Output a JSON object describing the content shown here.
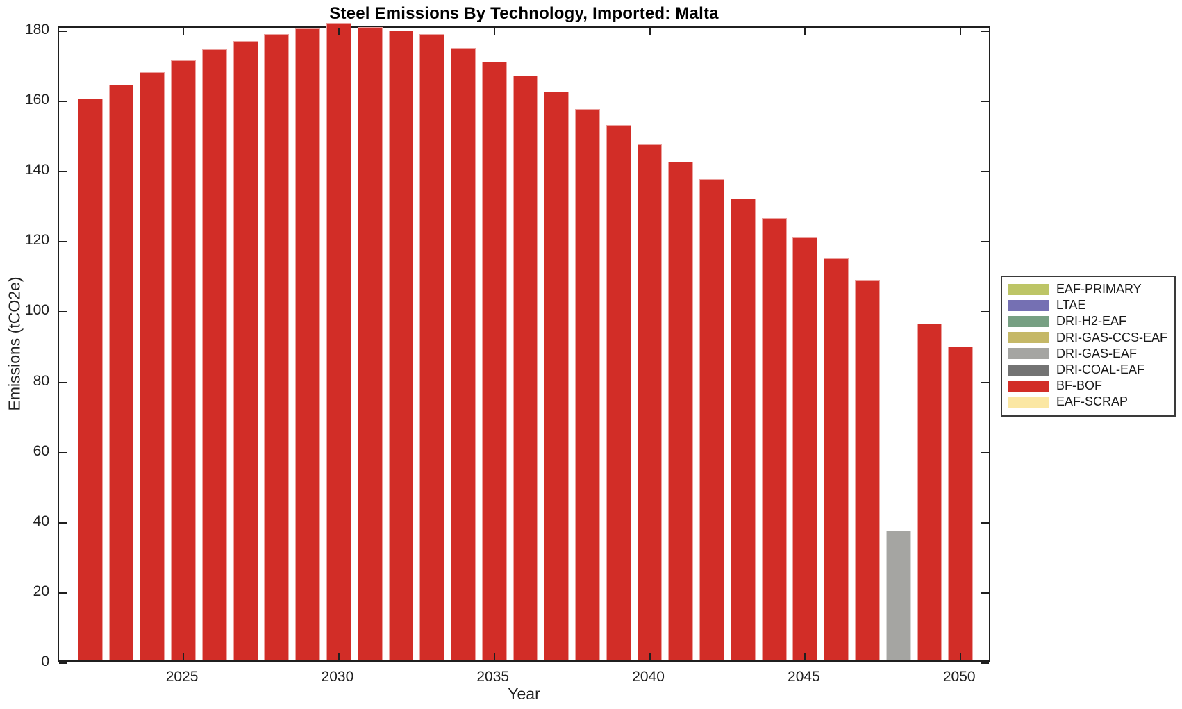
{
  "figure": {
    "title": "Steel Emissions By Technology, Imported: Malta",
    "xlabel": "Year",
    "ylabel": "Emissions (tCO2e)"
  },
  "chart_data": {
    "type": "bar",
    "title": "Steel Emissions By Technology, Imported: Malta",
    "xlabel": "Year",
    "ylabel": "Emissions (tCO2e)",
    "xlim": [
      2021,
      2051
    ],
    "ylim": [
      0,
      181
    ],
    "grid": false,
    "xticks": [
      2025,
      2030,
      2035,
      2040,
      2045,
      2050
    ],
    "yticks": [
      0,
      20,
      40,
      60,
      80,
      100,
      120,
      140,
      160,
      180
    ],
    "bar_slot_fraction": 0.8,
    "legend_position": "right-outside",
    "legend": [
      {
        "label": "EAF-PRIMARY",
        "color": "#bdc566"
      },
      {
        "label": "LTAE",
        "color": "#7570b3"
      },
      {
        "label": "DRI-H2-EAF",
        "color": "#77a083"
      },
      {
        "label": "DRI-GAS-CCS-EAF",
        "color": "#c5b867"
      },
      {
        "label": "DRI-GAS-EAF",
        "color": "#a5a5a2"
      },
      {
        "label": "DRI-COAL-EAF",
        "color": "#737373"
      },
      {
        "label": "BF-BOF",
        "color": "#d22d27"
      },
      {
        "label": "EAF-SCRAP",
        "color": "#fbe7a3"
      }
    ],
    "bars": [
      {
        "year": 2022,
        "tech": "BF-BOF",
        "value": 160.0
      },
      {
        "year": 2023,
        "tech": "BF-BOF",
        "value": 164.0
      },
      {
        "year": 2024,
        "tech": "BF-BOF",
        "value": 167.5
      },
      {
        "year": 2025,
        "tech": "BF-BOF",
        "value": 171.0
      },
      {
        "year": 2026,
        "tech": "BF-BOF",
        "value": 174.0
      },
      {
        "year": 2027,
        "tech": "BF-BOF",
        "value": 176.5
      },
      {
        "year": 2028,
        "tech": "BF-BOF",
        "value": 178.5
      },
      {
        "year": 2029,
        "tech": "BF-BOF",
        "value": 180.0
      },
      {
        "year": 2030,
        "tech": "BF-BOF",
        "value": 181.5
      },
      {
        "year": 2031,
        "tech": "BF-BOF",
        "value": 180.5
      },
      {
        "year": 2032,
        "tech": "BF-BOF",
        "value": 179.5
      },
      {
        "year": 2033,
        "tech": "BF-BOF",
        "value": 178.5
      },
      {
        "year": 2034,
        "tech": "BF-BOF",
        "value": 174.5
      },
      {
        "year": 2035,
        "tech": "BF-BOF",
        "value": 170.5
      },
      {
        "year": 2036,
        "tech": "BF-BOF",
        "value": 166.5
      },
      {
        "year": 2037,
        "tech": "BF-BOF",
        "value": 162.0
      },
      {
        "year": 2038,
        "tech": "BF-BOF",
        "value": 157.0
      },
      {
        "year": 2039,
        "tech": "BF-BOF",
        "value": 152.5
      },
      {
        "year": 2040,
        "tech": "BF-BOF",
        "value": 147.0
      },
      {
        "year": 2041,
        "tech": "BF-BOF",
        "value": 142.0
      },
      {
        "year": 2042,
        "tech": "BF-BOF",
        "value": 137.0
      },
      {
        "year": 2043,
        "tech": "BF-BOF",
        "value": 131.5
      },
      {
        "year": 2044,
        "tech": "BF-BOF",
        "value": 126.0
      },
      {
        "year": 2045,
        "tech": "BF-BOF",
        "value": 120.5
      },
      {
        "year": 2046,
        "tech": "BF-BOF",
        "value": 114.5
      },
      {
        "year": 2047,
        "tech": "BF-BOF",
        "value": 108.5
      },
      {
        "year": 2048,
        "tech": "DRI-GAS-EAF",
        "value": 37.0
      },
      {
        "year": 2049,
        "tech": "BF-BOF",
        "value": 96.0
      },
      {
        "year": 2050,
        "tech": "BF-BOF",
        "value": 89.5
      }
    ]
  }
}
